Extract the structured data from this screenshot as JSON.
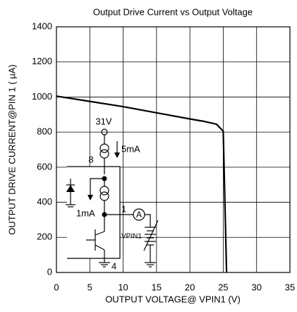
{
  "chart_data": {
    "type": "line",
    "title": "Output Drive Current vs Output Voltage",
    "xlabel": "OUTPUT VOLTAGE@ VPIN1 (V)",
    "ylabel": "OUTPUT DRIVE CURRENT@PIN 1 ( μA)",
    "x": [
      0,
      5,
      10,
      15,
      20,
      22,
      24,
      25,
      25.5
    ],
    "values": [
      1005,
      975,
      945,
      910,
      875,
      862,
      845,
      805,
      0
    ],
    "color": "#000000",
    "xlim": [
      0,
      35
    ],
    "xticks": [
      0,
      5,
      10,
      15,
      20,
      25,
      30,
      35
    ],
    "ylim": [
      0,
      1400
    ],
    "yticks": [
      0,
      200,
      400,
      600,
      800,
      1000,
      1200,
      1400
    ],
    "grid": true,
    "annotations": [
      "31V",
      "8",
      "5mA",
      "1mA",
      "1",
      "A",
      "VPIN1",
      "4"
    ]
  }
}
